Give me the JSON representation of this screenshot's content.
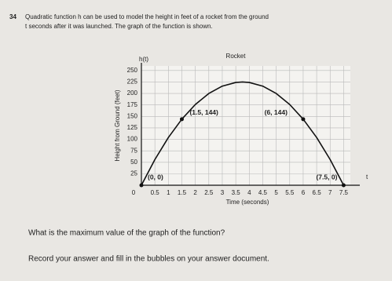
{
  "question": {
    "number": "34",
    "intro_line1": "Quadratic function h can be used to model the height in feet of a rocket from the ground",
    "intro_line2": "t seconds after it was launched. The graph of the function is shown.",
    "prompt": "What is the maximum value of the graph of the function?",
    "instruction": "Record your answer and fill in the bubbles on your answer document."
  },
  "chart_data": {
    "type": "line",
    "title": "Rocket",
    "y_axis_name": "h(t)",
    "x_axis_name": "t",
    "ylabel": "Height from Ground (feet)",
    "xlabel": "Time (seconds)",
    "x": [
      0,
      0.5,
      1,
      1.5,
      2,
      2.5,
      3,
      3.5,
      3.75,
      4,
      4.5,
      5,
      5.5,
      6,
      6.5,
      7,
      7.5
    ],
    "series": [
      {
        "name": "h(t)",
        "color": "#111111",
        "values": [
          0,
          56,
          104,
          144,
          176,
          200,
          216,
          224,
          225,
          224,
          216,
          200,
          176,
          144,
          104,
          56,
          0
        ]
      }
    ],
    "points": [
      {
        "label": "(0, 0)",
        "x": 0,
        "y": 0
      },
      {
        "label": "(1.5, 144)",
        "x": 1.5,
        "y": 144
      },
      {
        "label": "(6, 144)",
        "x": 6,
        "y": 144
      },
      {
        "label": "(7.5, 0)",
        "x": 7.5,
        "y": 0
      }
    ],
    "xlim": [
      0,
      7.75
    ],
    "ylim": [
      0,
      260
    ],
    "xticks": [
      0,
      0.5,
      1,
      1.5,
      2,
      2.5,
      3,
      3.5,
      4,
      4.5,
      5,
      5.5,
      6,
      6.5,
      7,
      7.5
    ],
    "yticks": [
      25,
      50,
      75,
      100,
      125,
      150,
      175,
      200,
      225,
      250
    ],
    "grid": true
  }
}
